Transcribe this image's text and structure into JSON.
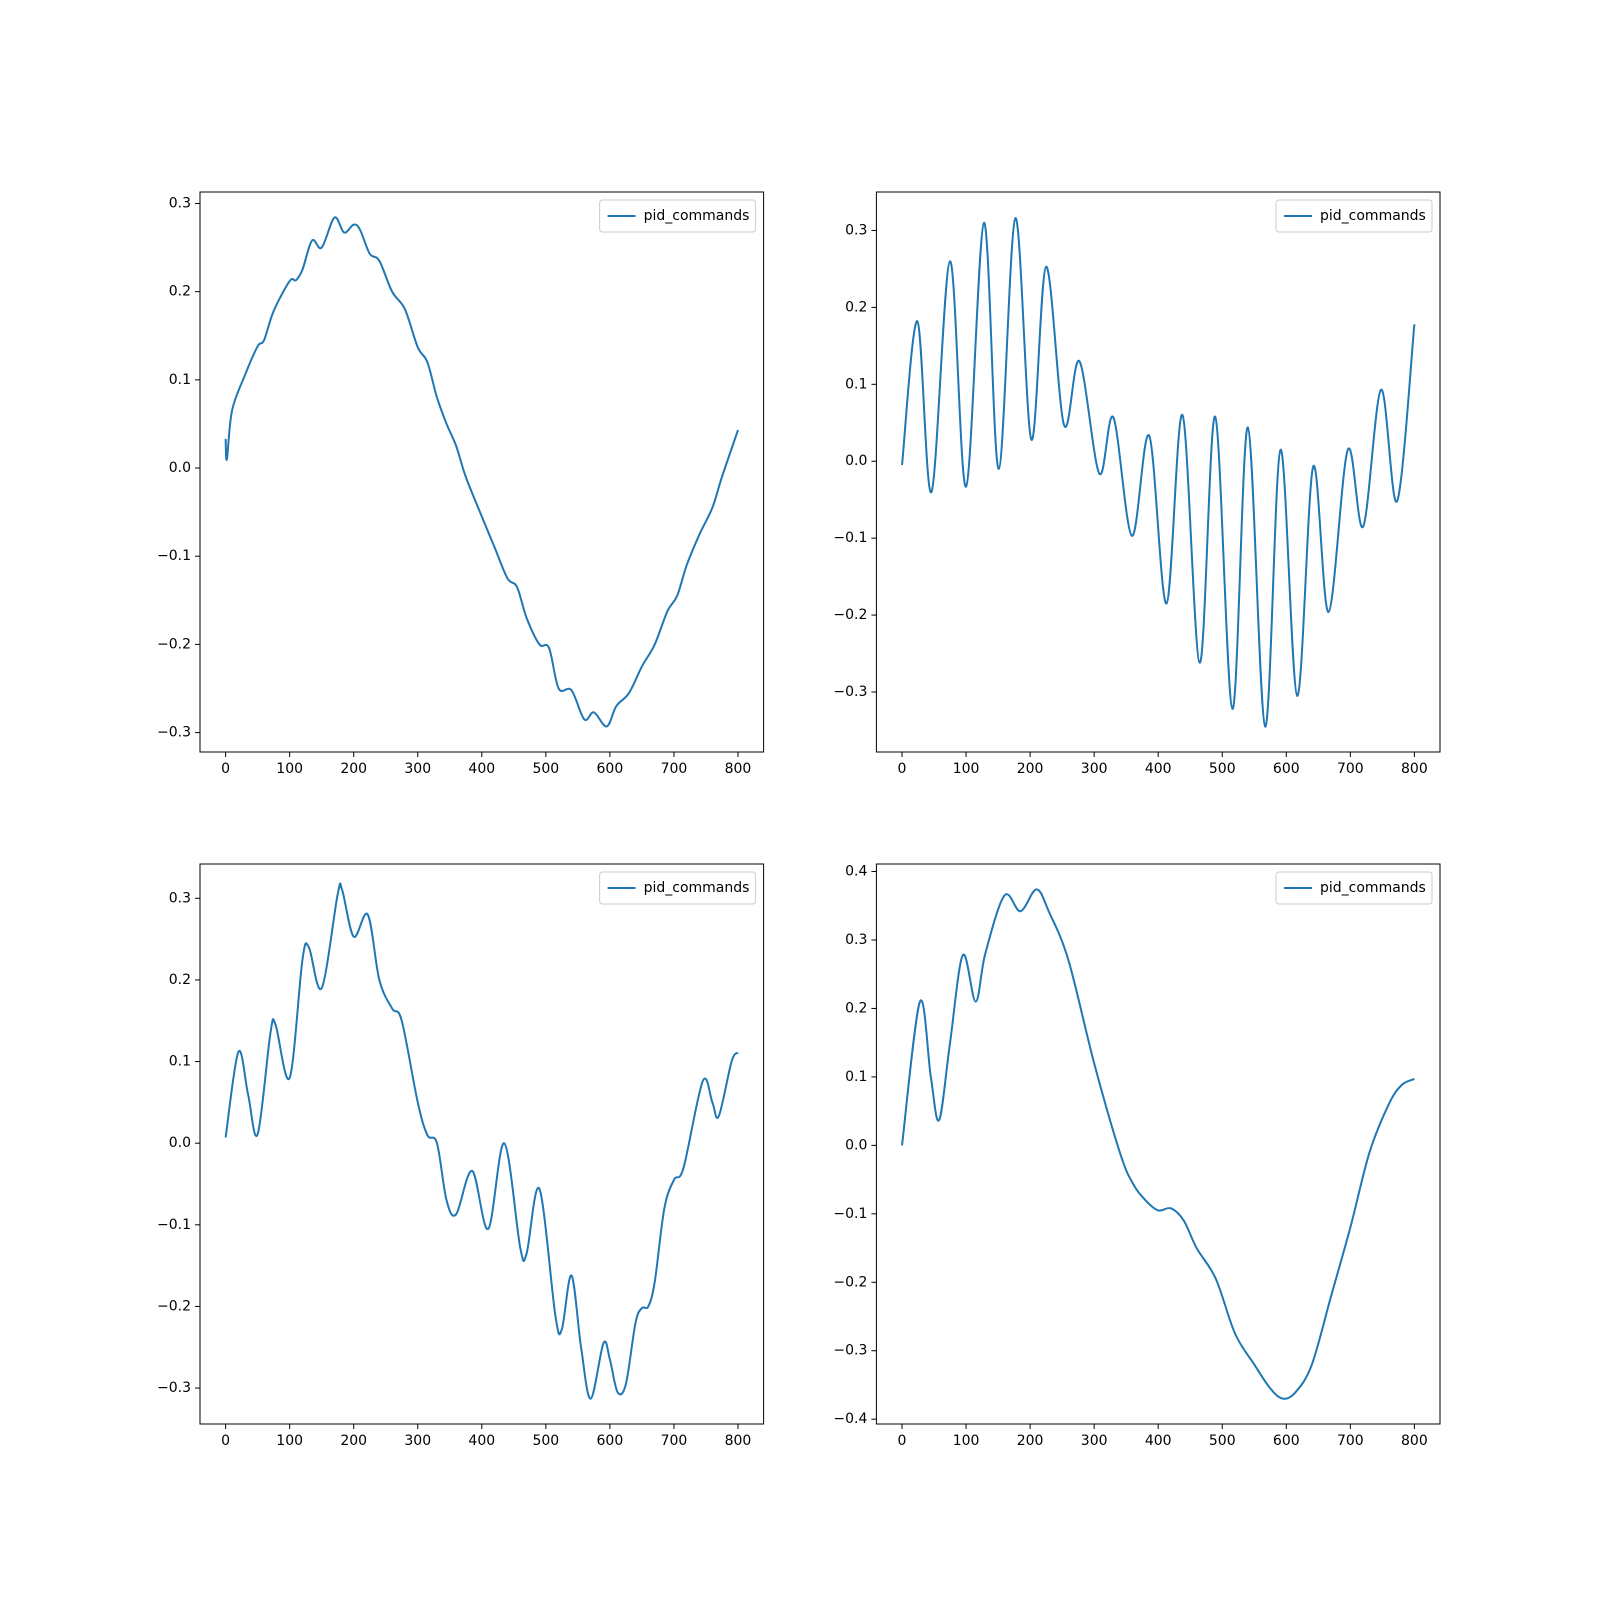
{
  "chart_data": [
    {
      "type": "line",
      "legend": "upper right",
      "x": [
        0,
        2,
        10,
        30,
        50,
        60,
        75,
        100,
        110,
        120,
        135,
        150,
        170,
        185,
        200,
        210,
        225,
        240,
        260,
        280,
        300,
        315,
        330,
        345,
        360,
        375,
        400,
        420,
        440,
        455,
        470,
        490,
        505,
        520,
        540,
        560,
        575,
        595,
        610,
        630,
        650,
        670,
        690,
        705,
        720,
        740,
        760,
        775,
        800
      ],
      "series": [
        {
          "name": "pid_commands",
          "color": "#1f77b4",
          "values": [
            0.033,
            0.01,
            0.065,
            0.105,
            0.138,
            0.145,
            0.178,
            0.212,
            0.213,
            0.225,
            0.258,
            0.25,
            0.284,
            0.267,
            0.276,
            0.27,
            0.243,
            0.235,
            0.2,
            0.18,
            0.137,
            0.12,
            0.08,
            0.05,
            0.025,
            -0.01,
            -0.055,
            -0.09,
            -0.125,
            -0.135,
            -0.17,
            -0.2,
            -0.204,
            -0.25,
            -0.252,
            -0.285,
            -0.277,
            -0.293,
            -0.27,
            -0.255,
            -0.225,
            -0.2,
            -0.162,
            -0.145,
            -0.11,
            -0.075,
            -0.045,
            -0.01,
            0.043
          ]
        }
      ],
      "xlim": [
        -40,
        840
      ],
      "xticks": [
        0,
        100,
        200,
        300,
        400,
        500,
        600,
        700,
        800
      ],
      "ylim": [
        -0.322,
        0.313
      ],
      "yticks": [
        {
          "value": -0.3,
          "label": "−0.3"
        },
        {
          "value": -0.2,
          "label": "−0.2"
        },
        {
          "value": -0.1,
          "label": "−0.1"
        },
        {
          "value": 0,
          "label": "0.0"
        },
        0.1,
        0.2,
        0.3
      ]
    },
    {
      "type": "line",
      "legend": "upper right",
      "x": [
        0,
        24,
        46,
        75,
        100,
        128,
        151,
        177,
        202,
        225,
        253,
        277,
        308,
        330,
        359,
        386,
        413,
        438,
        465,
        489,
        516,
        540,
        567,
        591,
        617,
        642,
        666,
        696,
        720,
        748,
        773,
        800
      ],
      "series": [
        {
          "name": "pid_commands",
          "color": "#1f77b4",
          "values": [
            -0.005,
            0.182,
            -0.04,
            0.26,
            -0.033,
            0.31,
            -0.01,
            0.316,
            0.028,
            0.253,
            0.047,
            0.13,
            -0.016,
            0.057,
            -0.097,
            0.033,
            -0.185,
            0.06,
            -0.262,
            0.058,
            -0.322,
            0.044,
            -0.345,
            0.015,
            -0.305,
            -0.007,
            -0.196,
            0.015,
            -0.085,
            0.093,
            -0.052,
            0.178
          ]
        }
      ],
      "xlim": [
        -40,
        840
      ],
      "xticks": [
        0,
        100,
        200,
        300,
        400,
        500,
        600,
        700,
        800
      ],
      "ylim": [
        -0.378,
        0.35
      ],
      "yticks": [
        {
          "value": -0.3,
          "label": "−0.3"
        },
        {
          "value": -0.2,
          "label": "−0.2"
        },
        {
          "value": -0.1,
          "label": "−0.1"
        },
        {
          "value": 0,
          "label": "0.0"
        },
        0.1,
        0.2,
        0.3
      ]
    },
    {
      "type": "line",
      "legend": "upper right",
      "x": [
        0,
        20,
        35,
        50,
        70,
        78,
        100,
        120,
        130,
        150,
        175,
        182,
        200,
        222,
        240,
        260,
        275,
        300,
        315,
        330,
        345,
        360,
        385,
        410,
        435,
        460,
        470,
        490,
        515,
        525,
        540,
        555,
        570,
        590,
        600,
        612,
        625,
        640,
        650,
        660,
        670,
        685,
        700,
        715,
        745,
        760,
        770,
        790,
        800
      ],
      "series": [
        {
          "name": "pid_commands",
          "color": "#1f77b4",
          "values": [
            0.007,
            0.112,
            0.06,
            0.011,
            0.135,
            0.145,
            0.08,
            0.225,
            0.24,
            0.19,
            0.305,
            0.31,
            0.253,
            0.28,
            0.2,
            0.165,
            0.15,
            0.05,
            0.01,
            0.0,
            -0.07,
            -0.087,
            -0.034,
            -0.105,
            0.0,
            -0.128,
            -0.135,
            -0.056,
            -0.212,
            -0.228,
            -0.162,
            -0.25,
            -0.313,
            -0.245,
            -0.265,
            -0.305,
            -0.295,
            -0.22,
            -0.202,
            -0.2,
            -0.17,
            -0.08,
            -0.045,
            -0.03,
            0.076,
            0.05,
            0.033,
            0.1,
            0.111
          ]
        }
      ],
      "xlim": [
        -40,
        840
      ],
      "xticks": [
        0,
        100,
        200,
        300,
        400,
        500,
        600,
        700,
        800
      ],
      "ylim": [
        -0.344,
        0.342
      ],
      "yticks": [
        {
          "value": -0.3,
          "label": "−0.3"
        },
        {
          "value": -0.2,
          "label": "−0.2"
        },
        {
          "value": -0.1,
          "label": "−0.1"
        },
        {
          "value": 0,
          "label": "0.0"
        },
        0.1,
        0.2,
        0.3
      ]
    },
    {
      "type": "line",
      "legend": "upper right",
      "x": [
        0,
        28,
        45,
        58,
        75,
        95,
        115,
        130,
        160,
        185,
        210,
        230,
        260,
        300,
        340,
        360,
        380,
        400,
        420,
        440,
        460,
        490,
        520,
        550,
        575,
        595,
        615,
        640,
        670,
        700,
        730,
        760,
        780,
        800
      ],
      "series": [
        {
          "name": "pid_commands",
          "color": "#1f77b4",
          "values": [
            0.0,
            0.21,
            0.1,
            0.037,
            0.15,
            0.278,
            0.21,
            0.28,
            0.365,
            0.342,
            0.374,
            0.34,
            0.27,
            0.12,
            -0.01,
            -0.055,
            -0.08,
            -0.095,
            -0.092,
            -0.11,
            -0.15,
            -0.195,
            -0.275,
            -0.32,
            -0.355,
            -0.37,
            -0.36,
            -0.32,
            -0.22,
            -0.12,
            -0.01,
            0.06,
            0.088,
            0.097
          ]
        }
      ],
      "xlim": [
        -40,
        840
      ],
      "xticks": [
        0,
        100,
        200,
        300,
        400,
        500,
        600,
        700,
        800
      ],
      "ylim": [
        -0.407,
        0.411
      ],
      "yticks": [
        {
          "value": -0.4,
          "label": "−0.4"
        },
        {
          "value": -0.3,
          "label": "−0.3"
        },
        {
          "value": -0.2,
          "label": "−0.2"
        },
        {
          "value": -0.1,
          "label": "−0.1"
        },
        {
          "value": 0,
          "label": "0.0"
        },
        0.1,
        0.2,
        0.3,
        0.4
      ]
    }
  ]
}
